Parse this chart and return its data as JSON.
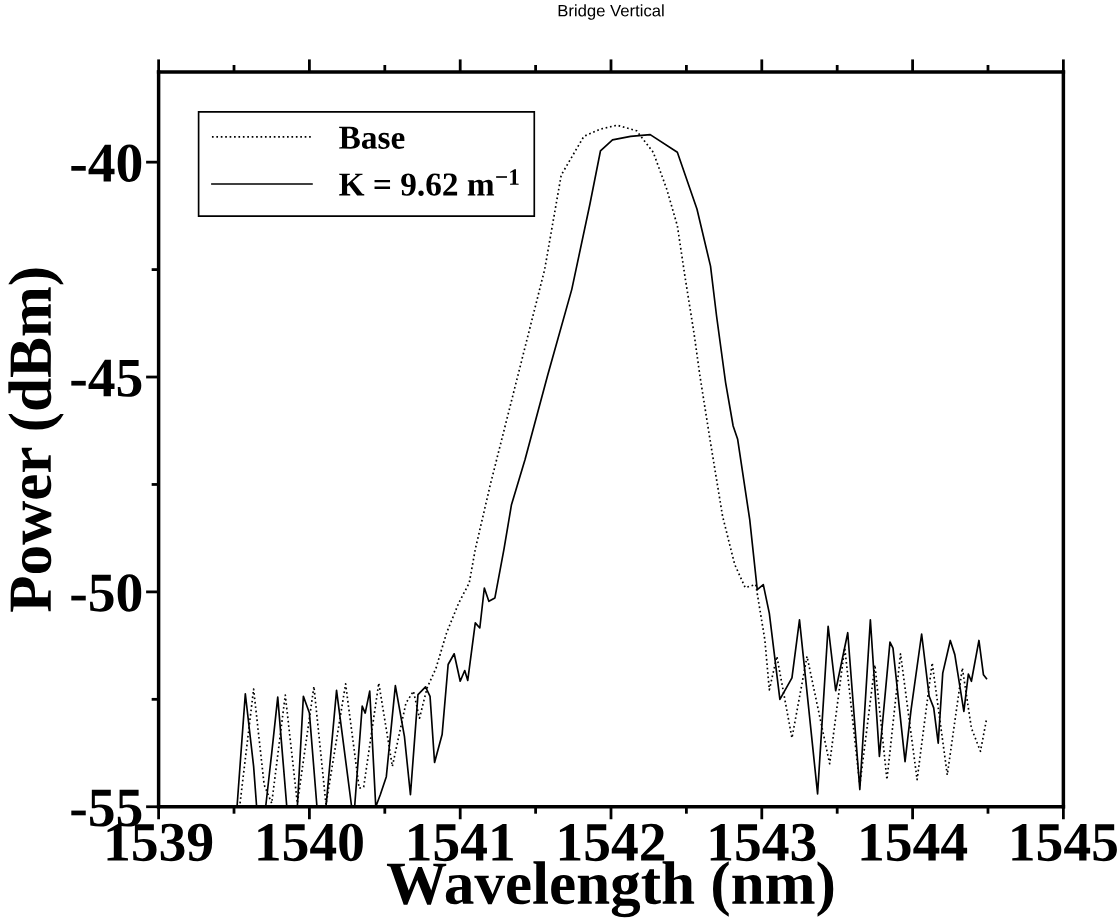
{
  "chart_data": {
    "type": "line",
    "title": "Bridge Vertical",
    "xlabel": "Wavelength (nm)",
    "ylabel": "Power (dBm)",
    "xlim": [
      1539,
      1545
    ],
    "ylim": [
      -55,
      -37.9
    ],
    "xticks": [
      1539,
      {
        "value": 1539.5,
        "label": null
      },
      1540,
      {
        "value": 1540.5,
        "label": null
      },
      1541,
      {
        "value": 1541.5,
        "label": null
      },
      1542,
      {
        "value": 1542.5,
        "label": null
      },
      1543,
      {
        "value": 1543.5,
        "label": null
      },
      1544,
      {
        "value": 1544.5,
        "label": null
      },
      1545
    ],
    "yticks": [
      -55,
      {
        "value": -52.5,
        "label": null
      },
      -50,
      {
        "value": -47.5,
        "label": null
      },
      -45,
      {
        "value": -42.5,
        "label": null
      },
      -40
    ],
    "legend": "top left",
    "grid": false,
    "series": [
      {
        "name": "Base",
        "color": "#000000",
        "line_style": "dotted",
        "x": [
          1539.54,
          1539.63,
          1539.7,
          1539.75,
          1539.84,
          1539.92,
          1540.03,
          1540.11,
          1540.24,
          1540.33,
          1540.36,
          1540.46,
          1540.55,
          1540.64,
          1540.69,
          1540.73,
          1540.78,
          1540.84,
          1540.91,
          1540.99,
          1541.06,
          1541.1,
          1541.2,
          1541.38,
          1541.56,
          1541.67,
          1541.82,
          1541.93,
          1542.04,
          1542.17,
          1542.28,
          1542.37,
          1542.44,
          1542.49,
          1542.55,
          1542.59,
          1542.66,
          1542.74,
          1542.82,
          1542.89,
          1542.96,
          1543.02,
          1543.05,
          1543.1,
          1543.2,
          1543.3,
          1543.45,
          1543.55,
          1543.65,
          1543.75,
          1543.83,
          1543.92,
          1544.03,
          1544.13,
          1544.23,
          1544.33,
          1544.39,
          1544.45,
          1544.49
        ],
        "values": [
          -54.92,
          -52.26,
          -54.49,
          -54.92,
          -52.4,
          -54.92,
          -52.2,
          -54.95,
          -52.14,
          -54.57,
          -54.54,
          -52.12,
          -54.06,
          -52.59,
          -52.31,
          -52.94,
          -52.24,
          -51.77,
          -50.95,
          -50.26,
          -49.79,
          -49.01,
          -47.5,
          -45,
          -42.5,
          -40.3,
          -39.4,
          -39.23,
          -39.14,
          -39.27,
          -39.77,
          -40.63,
          -41.48,
          -42.65,
          -43.97,
          -44.98,
          -46.53,
          -48.24,
          -49.36,
          -49.9,
          -49.83,
          -51.11,
          -52.28,
          -51.5,
          -53.4,
          -51.5,
          -54,
          -51.3,
          -54.5,
          -51.7,
          -54.37,
          -51.44,
          -54.37,
          -51.65,
          -54.26,
          -51.77,
          -53.17,
          -53.71,
          -52.97
        ]
      },
      {
        "name": "K = 9.62 m$^{−1}$",
        "color": "#000000",
        "line_style": "solid",
        "x": [
          1539.52,
          1539.575,
          1539.63,
          1539.65,
          1539.71,
          1539.75,
          1539.79,
          1539.85,
          1539.92,
          1539.96,
          1540.0,
          1540.05,
          1540.11,
          1540.18,
          1540.28,
          1540.3,
          1540.35,
          1540.37,
          1540.4,
          1540.44,
          1540.47,
          1540.51,
          1540.57,
          1540.63,
          1540.67,
          1540.72,
          1540.77,
          1540.8,
          1540.83,
          1540.88,
          1540.92,
          1540.96,
          1541.0,
          1541.03,
          1541.05,
          1541.1,
          1541.13,
          1541.16,
          1541.19,
          1541.23,
          1541.29,
          1541.34,
          1541.43,
          1541.58,
          1541.74,
          1541.86,
          1541.93,
          1542.01,
          1542.13,
          1542.26,
          1542.44,
          1542.57,
          1542.66,
          1542.7,
          1542.76,
          1542.81,
          1542.84,
          1542.92,
          1542.97,
          1543.01,
          1543.05,
          1543.12,
          1543.2,
          1543.25,
          1543.37,
          1543.44,
          1543.49,
          1543.57,
          1543.65,
          1543.72,
          1543.78,
          1543.85,
          1543.87,
          1543.95,
          1543.99,
          1544.06,
          1544.11,
          1544.14,
          1544.17,
          1544.2,
          1544.25,
          1544.28,
          1544.34,
          1544.37,
          1544.39,
          1544.44,
          1544.47,
          1544.49
        ],
        "values": [
          -55,
          -52.37,
          -54.06,
          -55,
          -55,
          -53.75,
          -52.45,
          -55,
          -55,
          -52.43,
          -52.82,
          -55,
          -55,
          -52.29,
          -55,
          -55,
          -52.66,
          -52.82,
          -52.31,
          -55,
          -54.72,
          -54.3,
          -52.18,
          -53.36,
          -54.72,
          -52.39,
          -52.21,
          -52.43,
          -53.97,
          -53.32,
          -51.69,
          -51.44,
          -52.08,
          -51.83,
          -52.06,
          -50.72,
          -50.84,
          -49.91,
          -50.22,
          -50.14,
          -49.01,
          -47.97,
          -46.92,
          -44.96,
          -42.96,
          -40.98,
          -39.74,
          -39.48,
          -39.4,
          -39.36,
          -39.77,
          -41.09,
          -42.42,
          -43.58,
          -45.13,
          -46.14,
          -46.45,
          -48.32,
          -49.95,
          -49.83,
          -50.5,
          -52.5,
          -52.0,
          -50.65,
          -54.7,
          -50.8,
          -52.3,
          -50.95,
          -54.6,
          -50.65,
          -53.83,
          -51.17,
          -51.31,
          -53.95,
          -52.74,
          -50.98,
          -52.43,
          -52.7,
          -53.52,
          -51.89,
          -51.13,
          -51.46,
          -52.78,
          -51.91,
          -52.08,
          -51.13,
          -51.93,
          -52.02
        ]
      }
    ]
  }
}
